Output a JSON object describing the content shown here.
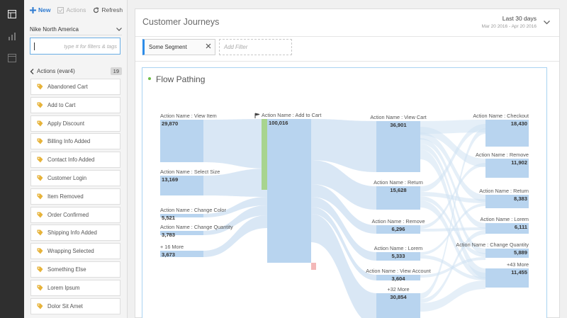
{
  "toolbar": {
    "new_label": "New",
    "actions_label": "Actions",
    "refresh_label": "Refresh"
  },
  "left_panel": {
    "report_suite": "Nike North America",
    "search_placeholder": "type # for filters & tags",
    "section_label": "Actions (evar4)",
    "section_count": "19",
    "items": [
      {
        "label": "Abandoned Cart"
      },
      {
        "label": "Add to Cart"
      },
      {
        "label": "Apply Discount"
      },
      {
        "label": "Billing Info Added"
      },
      {
        "label": "Contact Info Added"
      },
      {
        "label": "Customer Login"
      },
      {
        "label": "Item Removed"
      },
      {
        "label": "Order Confirmed"
      },
      {
        "label": "Shipping Info Added"
      },
      {
        "label": "Wrapping Selected"
      },
      {
        "label": "Something Else"
      },
      {
        "label": "Lorem Ipsum"
      },
      {
        "label": "Dolor Sit Amet"
      }
    ]
  },
  "project": {
    "title": "Customer Journeys",
    "date_label": "Last 30 days",
    "date_range": "Mar 20 2016 - Apr 20 2016"
  },
  "segments": {
    "applied": "Some Segment",
    "add_filter": "Add Filter"
  },
  "panel": {
    "title": "Flow Pathing"
  },
  "flow": {
    "columns": [
      {
        "nodes": [
          {
            "label": "Action Name : View Item",
            "value": "29,870"
          },
          {
            "label": "Action Name : Select Size",
            "value": "13,169"
          },
          {
            "label": "Action Name : Change Color",
            "value": "5,521"
          },
          {
            "label": "Action Name : Change Quantity",
            "value": "3,783"
          },
          {
            "label": "+ 16 More",
            "value": "3,673"
          }
        ]
      },
      {
        "nodes": [
          {
            "label": "Action Name : Add to Cart",
            "value": "100,016"
          }
        ]
      },
      {
        "nodes": [
          {
            "label": "Action Name : View Cart",
            "value": "36,901"
          },
          {
            "label": "Action Name : Return",
            "value": "15,628"
          },
          {
            "label": "Action Name : Remove",
            "value": "6,296"
          },
          {
            "label": "Action Name : Lorem",
            "value": "5,333"
          },
          {
            "label": "Action Name : View Account",
            "value": "3,604"
          },
          {
            "label": "+32 More",
            "value": "30,854"
          }
        ]
      },
      {
        "nodes": [
          {
            "label": "Action Name : Checkout",
            "value": "18,430"
          },
          {
            "label": "Action Name : Remove",
            "value": "11,902"
          },
          {
            "label": "Action Name : Return",
            "value": "8,383"
          },
          {
            "label": "Action Name : Lorem",
            "value": "6,111"
          },
          {
            "label": "Action Name : Change Quantity",
            "value": "5,889"
          },
          {
            "label": "+43 More",
            "value": "11,455"
          }
        ]
      }
    ]
  },
  "colors": {
    "node": "#b8d4ef",
    "flow": "#cfe1f3",
    "accent": "#2d7ad1",
    "entry_bar": "#a8d48f",
    "exit_bar": "#f3b8b8",
    "panel_border": "#a9d3f2"
  }
}
